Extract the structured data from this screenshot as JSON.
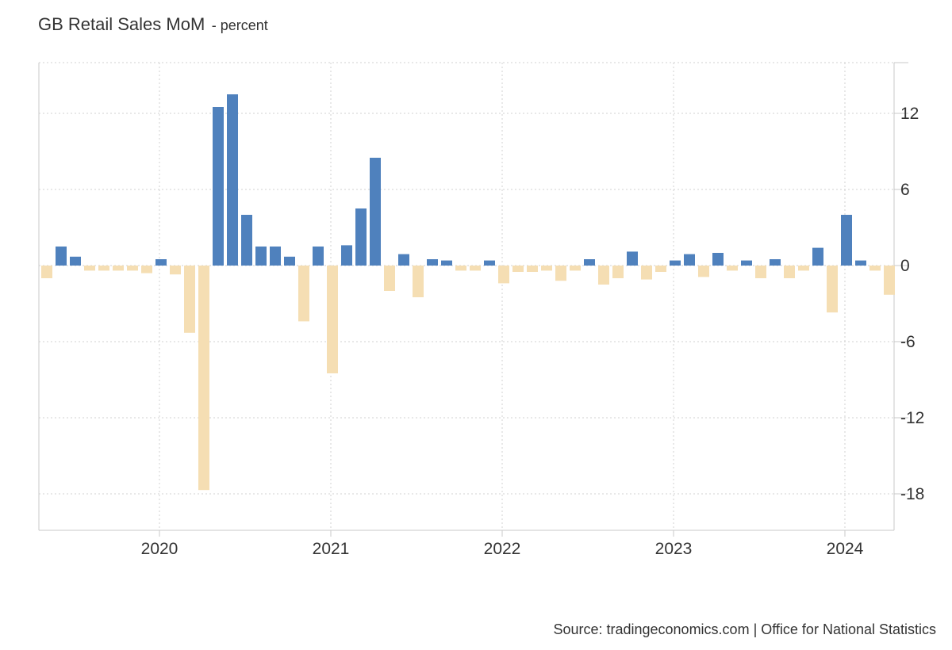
{
  "chart": {
    "title": "GB Retail Sales MoM",
    "unit_label": "- percent",
    "source": "Source: tradingeconomics.com | Office for National Statistics"
  },
  "colors": {
    "positive": "#4f81bd",
    "negative": "#f5deb3",
    "grid": "#d0d0d0",
    "axis": "#c8c8c8"
  },
  "chart_data": {
    "type": "bar",
    "title": "GB Retail Sales MoM",
    "unit": "percent",
    "ylim": [
      -21,
      16
    ],
    "yticks": [
      12,
      6,
      0,
      -6,
      -12,
      -18
    ],
    "ytick_labels": [
      "12",
      "6",
      "0",
      "-6",
      "-12",
      "-18"
    ],
    "xtick_labels": [
      "2020",
      "2021",
      "2022",
      "2023",
      "2024"
    ],
    "grid": true,
    "x_start": "2019-05",
    "x": [
      "2019-05",
      "2019-06",
      "2019-07",
      "2019-08",
      "2019-09",
      "2019-10",
      "2019-11",
      "2019-12",
      "2020-01",
      "2020-02",
      "2020-03",
      "2020-04",
      "2020-05",
      "2020-06",
      "2020-07",
      "2020-08",
      "2020-09",
      "2020-10",
      "2020-11",
      "2020-12",
      "2021-01",
      "2021-02",
      "2021-03",
      "2021-04",
      "2021-05",
      "2021-06",
      "2021-07",
      "2021-08",
      "2021-09",
      "2021-10",
      "2021-11",
      "2021-12",
      "2022-01",
      "2022-02",
      "2022-03",
      "2022-04",
      "2022-05",
      "2022-06",
      "2022-07",
      "2022-08",
      "2022-09",
      "2022-10",
      "2022-11",
      "2022-12",
      "2023-01",
      "2023-02",
      "2023-03",
      "2023-04",
      "2023-05",
      "2023-06",
      "2023-07",
      "2023-08",
      "2023-09",
      "2023-10",
      "2023-11",
      "2023-12",
      "2024-01",
      "2024-02",
      "2024-03",
      "2024-04"
    ],
    "values": [
      -1.0,
      1.5,
      0.7,
      -0.4,
      -0.4,
      -0.4,
      -0.4,
      -0.6,
      0.5,
      -0.7,
      -5.3,
      -17.7,
      12.5,
      13.5,
      4.0,
      1.5,
      1.5,
      0.7,
      -4.4,
      1.5,
      -8.5,
      1.6,
      4.5,
      8.5,
      -2.0,
      0.9,
      -2.5,
      0.5,
      0.4,
      -0.4,
      -0.4,
      0.4,
      -1.4,
      -0.5,
      -0.5,
      -0.4,
      -1.2,
      -0.4,
      0.5,
      -1.5,
      -1.0,
      1.1,
      -1.1,
      -0.5,
      0.4,
      0.9,
      -0.9,
      1.0,
      -0.4,
      0.4,
      -1.0,
      0.5,
      -1.0,
      -0.4,
      1.4,
      -3.7,
      4.0,
      0.4,
      -0.4,
      -2.3
    ]
  }
}
